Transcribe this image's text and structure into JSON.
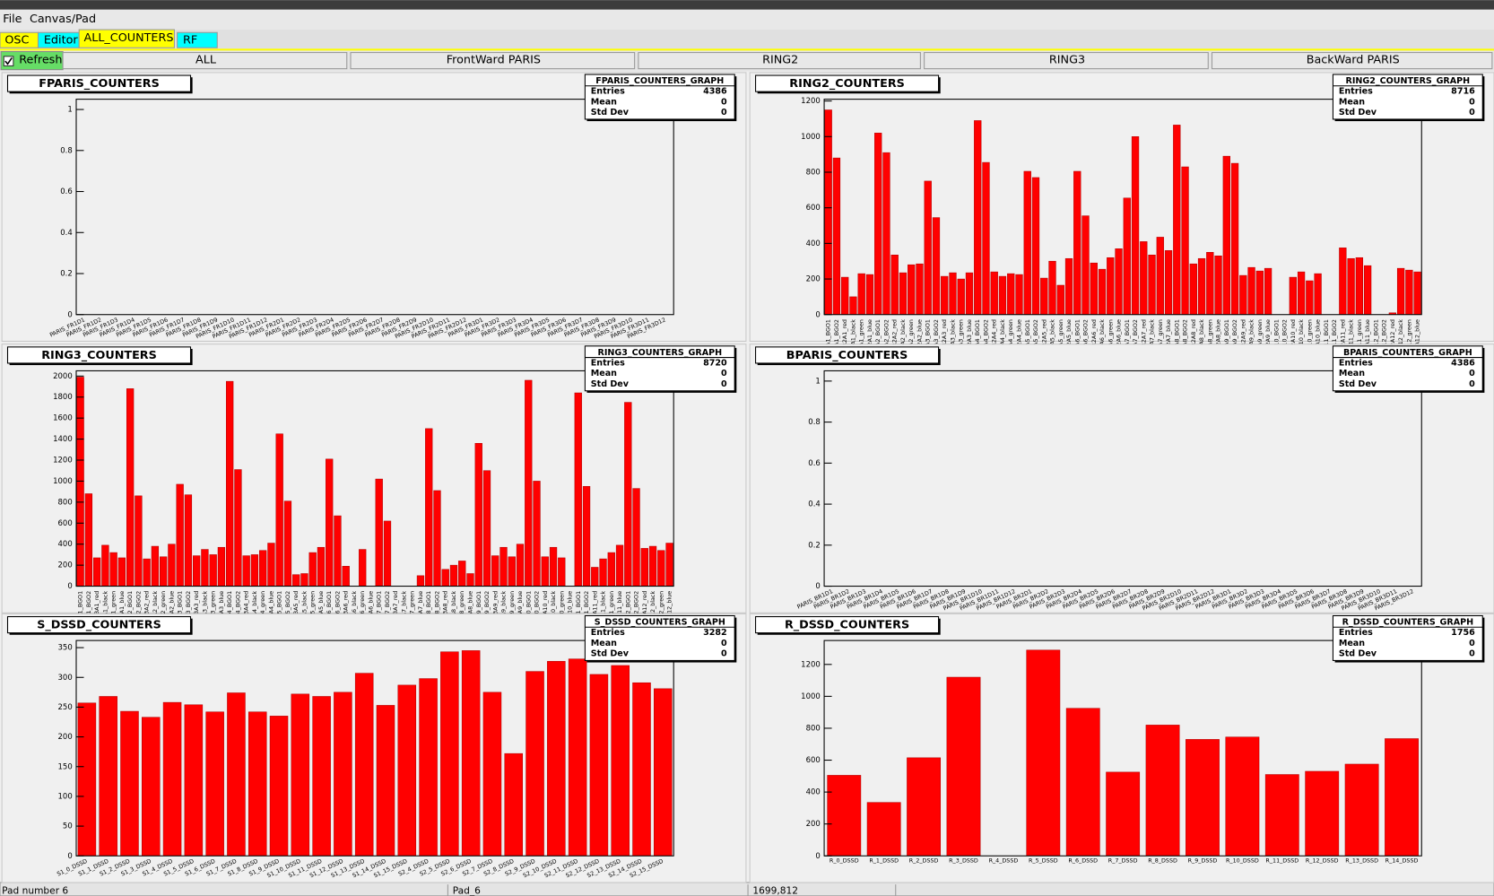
{
  "menu": [
    "File",
    "Canvas/Pad"
  ],
  "tabs": [
    "OSC",
    "Editor",
    "ALL_COUNTERS",
    "RF"
  ],
  "refresh": "Refresh",
  "buttons": [
    "ALL",
    "FrontWard PARIS",
    "RING2",
    "RING3",
    "BackWard PARIS"
  ],
  "stats_labels": [
    "Entries",
    "Mean",
    "Std Dev"
  ],
  "status": [
    "Pad number 6",
    "Pad_6",
    "1699,812"
  ],
  "chart_data": [
    {
      "type": "bar",
      "title": "FPARIS_COUNTERS",
      "stats": {
        "title": "FPARIS_COUNTERS_GRAPH",
        "entries": 4386,
        "mean": 0,
        "std_dev": 0
      },
      "categories": [
        "PARIS_FR1D1",
        "PARIS_FR1D2",
        "PARIS_FR1D3",
        "PARIS_FR1D4",
        "PARIS_FR1D5",
        "PARIS_FR1D6",
        "PARIS_FR1D7",
        "PARIS_FR1D8",
        "PARIS_FR1D9",
        "PARIS_FR1D10",
        "PARIS_FR1D11",
        "PARIS_FR1D12",
        "PARIS_FR2D1",
        "PARIS_FR2D2",
        "PARIS_FR2D3",
        "PARIS_FR2D4",
        "PARIS_FR2D5",
        "PARIS_FR2D6",
        "PARIS_FR2D7",
        "PARIS_FR2D8",
        "PARIS_FR2D9",
        "PARIS_FR2D10",
        "PARIS_FR2D11",
        "PARIS_FR2D12",
        "PARIS_FR3D1",
        "PARIS_FR3D2",
        "PARIS_FR3D3",
        "PARIS_FR3D4",
        "PARIS_FR3D5",
        "PARIS_FR3D6",
        "PARIS_FR3D7",
        "PARIS_FR3D8",
        "PARIS_FR3D9",
        "PARIS_FR3D10",
        "PARIS_FR3D11",
        "PARIS_FR3D12"
      ],
      "values": [
        0,
        0,
        0,
        0,
        0,
        0,
        0,
        0,
        0,
        0,
        0,
        0,
        0,
        0,
        0,
        0,
        0,
        0,
        0,
        0,
        0,
        0,
        0,
        0,
        0,
        0,
        0,
        0,
        0,
        0,
        0,
        0,
        0,
        0,
        0,
        0
      ],
      "color": "#ff0000",
      "ylim": [
        0,
        1.05
      ],
      "yticks": [
        0,
        0.2,
        0.4,
        0.6,
        0.8,
        1
      ]
    },
    {
      "type": "bar",
      "title": "RING2_COUNTERS",
      "stats": {
        "title": "RING2_COUNTERS_GRAPH",
        "entries": 8716,
        "mean": 0,
        "std_dev": 0
      },
      "categories": [
        "R2A1_BGO1",
        "R2A1_BGO2",
        "R2A1_red",
        "R2A1_black",
        "R2A1_green",
        "R2A1_blue",
        "R2A2_BGO1",
        "R2A2_BGO2",
        "R2A2_red",
        "R2A2_black",
        "R2A2_green",
        "R2A2_blue",
        "R2A3_BGO1",
        "R2A3_BGO2",
        "R2A3_red",
        "R2A3_black",
        "R2A3_green",
        "R2A3_blue",
        "R2A4_BGO1",
        "R2A4_BGO2",
        "R2A4_red",
        "R2A4_black",
        "R2A4_green",
        "R2A4_blue",
        "R2A5_BGO1",
        "R2A5_BGO2",
        "R2A5_red",
        "R2A5_black",
        "R2A5_green",
        "R2A5_blue",
        "R2A6_BGO1",
        "R2A6_BGO2",
        "R2A6_red",
        "R2A6_black",
        "R2A6_green",
        "R2A6_blue",
        "R2A7_BGO1",
        "R2A7_BGO2",
        "R2A7_red",
        "R2A7_black",
        "R2A7_green",
        "R2A7_blue",
        "R2A8_BGO1",
        "R2A8_BGO2",
        "R2A8_red",
        "R2A8_black",
        "R2A8_green",
        "R2A8_blue",
        "R2A9_BGO1",
        "R2A9_BGO2",
        "R2A9_red",
        "R2A9_black",
        "R2A9_green",
        "R2A9_blue",
        "R2A10_BGO1",
        "R2A10_BGO2",
        "R2A10_red",
        "R2A10_black",
        "R2A10_green",
        "R2A10_blue",
        "R2A11_BGO1",
        "R2A11_BGO2",
        "R2A11_red",
        "R2A11_black",
        "R2A11_green",
        "R2A11_blue",
        "R2A12_BGO1",
        "R2A12_BGO2",
        "R2A12_red",
        "R2A12_black",
        "R2A12_green",
        "R2A12_blue"
      ],
      "values": [
        1150,
        880,
        210,
        100,
        230,
        225,
        1020,
        910,
        335,
        235,
        280,
        285,
        750,
        545,
        215,
        235,
        200,
        235,
        1090,
        855,
        240,
        215,
        230,
        225,
        805,
        770,
        205,
        300,
        165,
        315,
        805,
        555,
        290,
        255,
        320,
        370,
        655,
        1000,
        410,
        335,
        435,
        360,
        1065,
        830,
        285,
        315,
        350,
        330,
        890,
        850,
        220,
        265,
        245,
        260,
        0,
        0,
        210,
        240,
        190,
        230,
        0,
        0,
        375,
        315,
        320,
        275,
        0,
        0,
        10,
        260,
        250,
        240
      ],
      "color": "#ff0000",
      "ylim": [
        0,
        1210
      ],
      "yticks": [
        0,
        200,
        400,
        600,
        800,
        1000,
        1200
      ]
    },
    {
      "type": "bar",
      "title": "RING3_COUNTERS",
      "stats": {
        "title": "RING3_COUNTERS_GRAPH",
        "entries": 8720,
        "mean": 0,
        "std_dev": 0
      },
      "categories": [
        "R3A1_BGO1",
        "R3A1_BGO2",
        "R3A1_red",
        "R3A1_black",
        "R3A1_green",
        "R3A1_blue",
        "R3A2_BGO1",
        "R3A2_BGO2",
        "R3A2_red",
        "R3A2_black",
        "R3A2_green",
        "R3A2_blue",
        "R3A3_BGO1",
        "R3A3_BGO2",
        "R3A3_red",
        "R3A3_black",
        "R3A3_green",
        "R3A3_blue",
        "R3A4_BGO1",
        "R3A4_BGO2",
        "R3A4_red",
        "R3A4_black",
        "R3A4_green",
        "R3A4_blue",
        "R3A5_BGO1",
        "R3A5_BGO2",
        "R3A5_red",
        "R3A5_black",
        "R3A5_green",
        "R3A5_blue",
        "R3A6_BGO1",
        "R3A6_BGO2",
        "R3A6_red",
        "R3A6_black",
        "R3A6_green",
        "R3A6_blue",
        "R3A7_BGO1",
        "R3A7_BGO2",
        "R3A7_red",
        "R3A7_black",
        "R3A7_green",
        "R3A7_blue",
        "R3A8_BGO1",
        "R3A8_BGO2",
        "R3A8_red",
        "R3A8_black",
        "R3A8_green",
        "R3A8_blue",
        "R3A9_BGO1",
        "R3A9_BGO2",
        "R3A9_red",
        "R3A9_black",
        "R3A9_green",
        "R3A9_blue",
        "R3A10_BGO1",
        "R3A10_BGO2",
        "R3A10_red",
        "R3A10_black",
        "R3A10_green",
        "R3A10_blue",
        "R3A11_BGO1",
        "R3A11_BGO2",
        "R3A11_red",
        "R3A11_black",
        "R3A11_green",
        "R3A11_blue",
        "R3A12_BGO1",
        "R3A12_BGO2",
        "R3A12_red",
        "R3A12_black",
        "R3A12_green",
        "R3A12_blue"
      ],
      "values": [
        1990,
        880,
        270,
        390,
        320,
        270,
        1880,
        860,
        260,
        380,
        280,
        400,
        970,
        870,
        290,
        350,
        300,
        370,
        1950,
        1110,
        290,
        300,
        340,
        410,
        1450,
        810,
        110,
        120,
        320,
        370,
        1210,
        670,
        190,
        0,
        350,
        0,
        1020,
        620,
        0,
        0,
        0,
        100,
        1500,
        910,
        160,
        200,
        240,
        120,
        1360,
        1100,
        290,
        370,
        280,
        400,
        1960,
        1000,
        280,
        370,
        270,
        0,
        1840,
        950,
        180,
        260,
        320,
        390,
        1750,
        930,
        360,
        380,
        340,
        410
      ],
      "color": "#ff0000",
      "ylim": [
        0,
        2050
      ],
      "yticks": [
        0,
        200,
        400,
        600,
        800,
        1000,
        1200,
        1400,
        1600,
        1800,
        2000
      ]
    },
    {
      "type": "bar",
      "title": "BPARIS_COUNTERS",
      "stats": {
        "title": "BPARIS_COUNTERS_GRAPH",
        "entries": 4386,
        "mean": 0,
        "std_dev": 0
      },
      "categories": [
        "PARIS_BR1D1",
        "PARIS_BR1D2",
        "PARIS_BR1D3",
        "PARIS_BR1D4",
        "PARIS_BR1D5",
        "PARIS_BR1D6",
        "PARIS_BR1D7",
        "PARIS_BR1D8",
        "PARIS_BR1D9",
        "PARIS_BR1D10",
        "PARIS_BR1D11",
        "PARIS_BR1D12",
        "PARIS_BR2D1",
        "PARIS_BR2D2",
        "PARIS_BR2D3",
        "PARIS_BR2D4",
        "PARIS_BR2D5",
        "PARIS_BR2D6",
        "PARIS_BR2D7",
        "PARIS_BR2D8",
        "PARIS_BR2D9",
        "PARIS_BR2D10",
        "PARIS_BR2D11",
        "PARIS_BR2D12",
        "PARIS_BR3D1",
        "PARIS_BR3D2",
        "PARIS_BR3D3",
        "PARIS_BR3D4",
        "PARIS_BR3D5",
        "PARIS_BR3D6",
        "PARIS_BR3D7",
        "PARIS_BR3D8",
        "PARIS_BR3D9",
        "PARIS_BR3D10",
        "PARIS_BR3D11",
        "PARIS_BR3D12"
      ],
      "values": [
        0,
        0,
        0,
        0,
        0,
        0,
        0,
        0,
        0,
        0,
        0,
        0,
        0,
        0,
        0,
        0,
        0,
        0,
        0,
        0,
        0,
        0,
        0,
        0,
        0,
        0,
        0,
        0,
        0,
        0,
        0,
        0,
        0,
        0,
        0,
        0
      ],
      "color": "#ff0000",
      "ylim": [
        0,
        1.05
      ],
      "yticks": [
        0,
        0.2,
        0.4,
        0.6,
        0.8,
        1
      ]
    },
    {
      "type": "bar",
      "title": "S_DSSD_COUNTERS",
      "stats": {
        "title": "S_DSSD_COUNTERS_GRAPH",
        "entries": 3282,
        "mean": 0,
        "std_dev": 0
      },
      "categories": [
        "S1_0_DSSD",
        "S1_1_DSSD",
        "S1_2_DSSD",
        "S1_3_DSSD",
        "S1_4_DSSD",
        "S1_5_DSSD",
        "S1_6_DSSD",
        "S1_7_DSSD",
        "S1_8_DSSD",
        "S1_9_DSSD",
        "S1_10_DSSD",
        "S1_11_DSSD",
        "S1_12_DSSD",
        "S1_13_DSSD",
        "S1_14_DSSD",
        "S1_15_DSSD",
        "S2_4_DSSD",
        "S2_5_DSSD",
        "S2_6_DSSD",
        "S2_7_DSSD",
        "S2_8_DSSD",
        "S2_9_DSSD",
        "S2_10_DSSD",
        "S2_11_DSSD",
        "S2_12_DSSD",
        "S2_13_DSSD",
        "S2_14_DSSD",
        "S2_15_DSSD"
      ],
      "values": [
        257,
        268,
        243,
        233,
        258,
        254,
        242,
        274,
        242,
        235,
        272,
        268,
        275,
        307,
        253,
        287,
        298,
        343,
        345,
        275,
        172,
        310,
        327,
        331,
        305,
        320,
        291,
        281
      ],
      "color": "#ff0000",
      "ylim": [
        0,
        362
      ],
      "yticks": [
        0,
        50,
        100,
        150,
        200,
        250,
        300,
        350
      ]
    },
    {
      "type": "bar",
      "title": "R_DSSD_COUNTERS",
      "stats": {
        "title": "R_DSSD_COUNTERS_GRAPH",
        "entries": 1756,
        "mean": 0,
        "std_dev": 0
      },
      "categories": [
        "R_0_DSSD",
        "R_1_DSSD",
        "R_2_DSSD",
        "R_3_DSSD",
        "R_4_DSSD",
        "R_5_DSSD",
        "R_6_DSSD",
        "R_7_DSSD",
        "R_8_DSSD",
        "R_9_DSSD",
        "R_10_DSSD",
        "R_11_DSSD",
        "R_12_DSSD",
        "R_13_DSSD",
        "R_14_DSSD"
      ],
      "values": [
        505,
        335,
        615,
        1120,
        0,
        1290,
        925,
        525,
        820,
        730,
        745,
        510,
        530,
        575,
        735
      ],
      "color": "#ff0000",
      "ylim": [
        0,
        1350
      ],
      "yticks": [
        0,
        200,
        400,
        600,
        800,
        1000,
        1200
      ]
    }
  ]
}
